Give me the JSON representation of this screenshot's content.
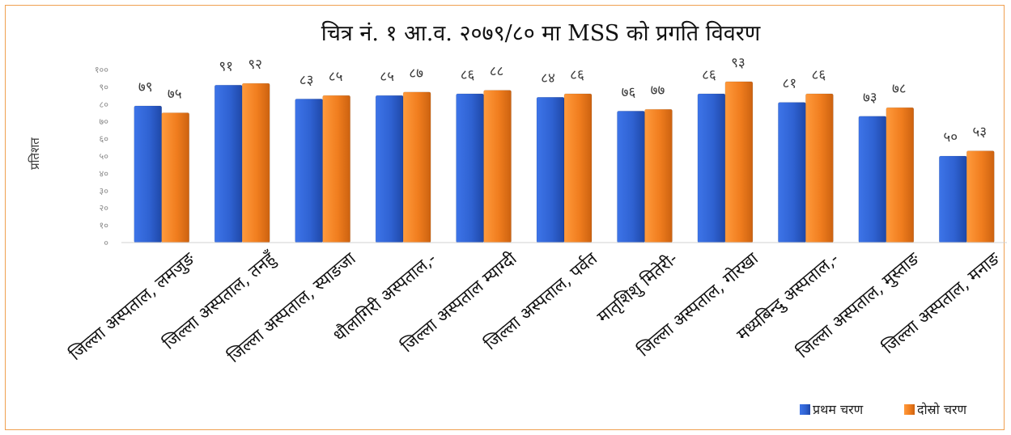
{
  "chart_data": {
    "type": "bar",
    "title": "चित्र नं. १ आ.व. २०७९/८० मा MSS को प्रगति विवरण",
    "ylabel": "प्रतिशत",
    "xlabel": "",
    "ylim": [
      0,
      100
    ],
    "yticks": [
      "०",
      "१०",
      "२०",
      "३०",
      "४०",
      "५०",
      "६०",
      "७०",
      "८०",
      "९०",
      "१००"
    ],
    "categories": [
      "जिल्ला अस्पताल, लमजुङ",
      "जिल्ला अस्पताल, तनहुँ",
      "जिल्ला अस्पताल, स्याङजा",
      "धौलागिरी अस्पताल,-",
      "जिल्ला अस्पताल म्याग्दी",
      "जिल्ला अस्पताल, पर्वत",
      "मातृशिशु मितेरी-",
      "जिल्ला अस्पताल, गोरखा",
      "मध्यबिन्दु अस्पताल,-",
      "जिल्ला अस्पताल, मुस्ताङ",
      "जिल्ला अस्पताल, मनाङ"
    ],
    "series": [
      {
        "name": "प्रथम चरण",
        "color": "#2f62d2",
        "values": [
          79,
          91,
          83,
          85,
          86,
          84,
          76,
          86,
          81,
          73,
          50
        ],
        "labels": [
          "७९",
          "९१",
          "८३",
          "८५",
          "८६",
          "८४",
          "७६",
          "८६",
          "८१",
          "७३",
          "५०"
        ]
      },
      {
        "name": "दोस्रो चरण",
        "color": "#f07d1e",
        "values": [
          75,
          92,
          85,
          87,
          88,
          86,
          77,
          93,
          86,
          78,
          53
        ],
        "labels": [
          "७५",
          "९२",
          "८५",
          "८७",
          "८८",
          "८६",
          "७७",
          "९३",
          "८६",
          "७८",
          "५३"
        ]
      }
    ],
    "grid": false,
    "legend_position": "bottom-right"
  }
}
